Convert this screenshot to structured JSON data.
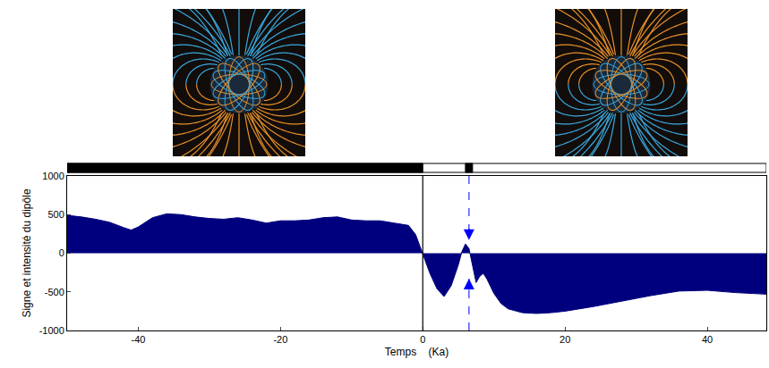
{
  "chart_data": {
    "type": "area",
    "xlabel": "Temps    (Ka)",
    "ylabel": "Signe et intensité du dipôle",
    "x": [
      -50,
      -48,
      -46,
      -44,
      -42,
      -41,
      -40,
      -38,
      -36,
      -34,
      -32,
      -30,
      -28,
      -26,
      -24,
      -22,
      -20,
      -18,
      -16,
      -14,
      -12,
      -10,
      -8,
      -6,
      -4,
      -2,
      -1,
      0,
      1,
      2,
      3,
      4,
      5,
      5.5,
      6,
      6.5,
      7,
      7.5,
      8,
      8.5,
      9,
      10,
      11,
      12,
      14,
      16,
      18,
      20,
      24,
      28,
      32,
      36,
      40,
      44,
      48.3
    ],
    "values": [
      490,
      470,
      440,
      400,
      330,
      300,
      340,
      460,
      510,
      500,
      470,
      450,
      440,
      460,
      430,
      390,
      420,
      420,
      430,
      460,
      470,
      430,
      420,
      420,
      390,
      360,
      240,
      0,
      -260,
      -460,
      -560,
      -420,
      -150,
      20,
      120,
      60,
      -150,
      -380,
      -300,
      -260,
      -330,
      -520,
      -650,
      -720,
      -770,
      -780,
      -770,
      -750,
      -690,
      -620,
      -550,
      -490,
      -480,
      -510,
      -530
    ],
    "color": "#00007f",
    "xlim": [
      -50,
      48.3
    ],
    "ylim": [
      -1000,
      1000
    ],
    "xticks": [
      -40,
      -20,
      0,
      20,
      40
    ],
    "yticks": [
      -1000,
      -500,
      0,
      500,
      1000
    ],
    "grid": false,
    "vline_x": 0,
    "arrow": {
      "x": 6.5,
      "tips": [
        170,
        -330
      ]
    },
    "normal_polarity": [
      {
        "start": -50,
        "end": 0
      },
      {
        "start": 6,
        "end": 7
      }
    ]
  }
}
